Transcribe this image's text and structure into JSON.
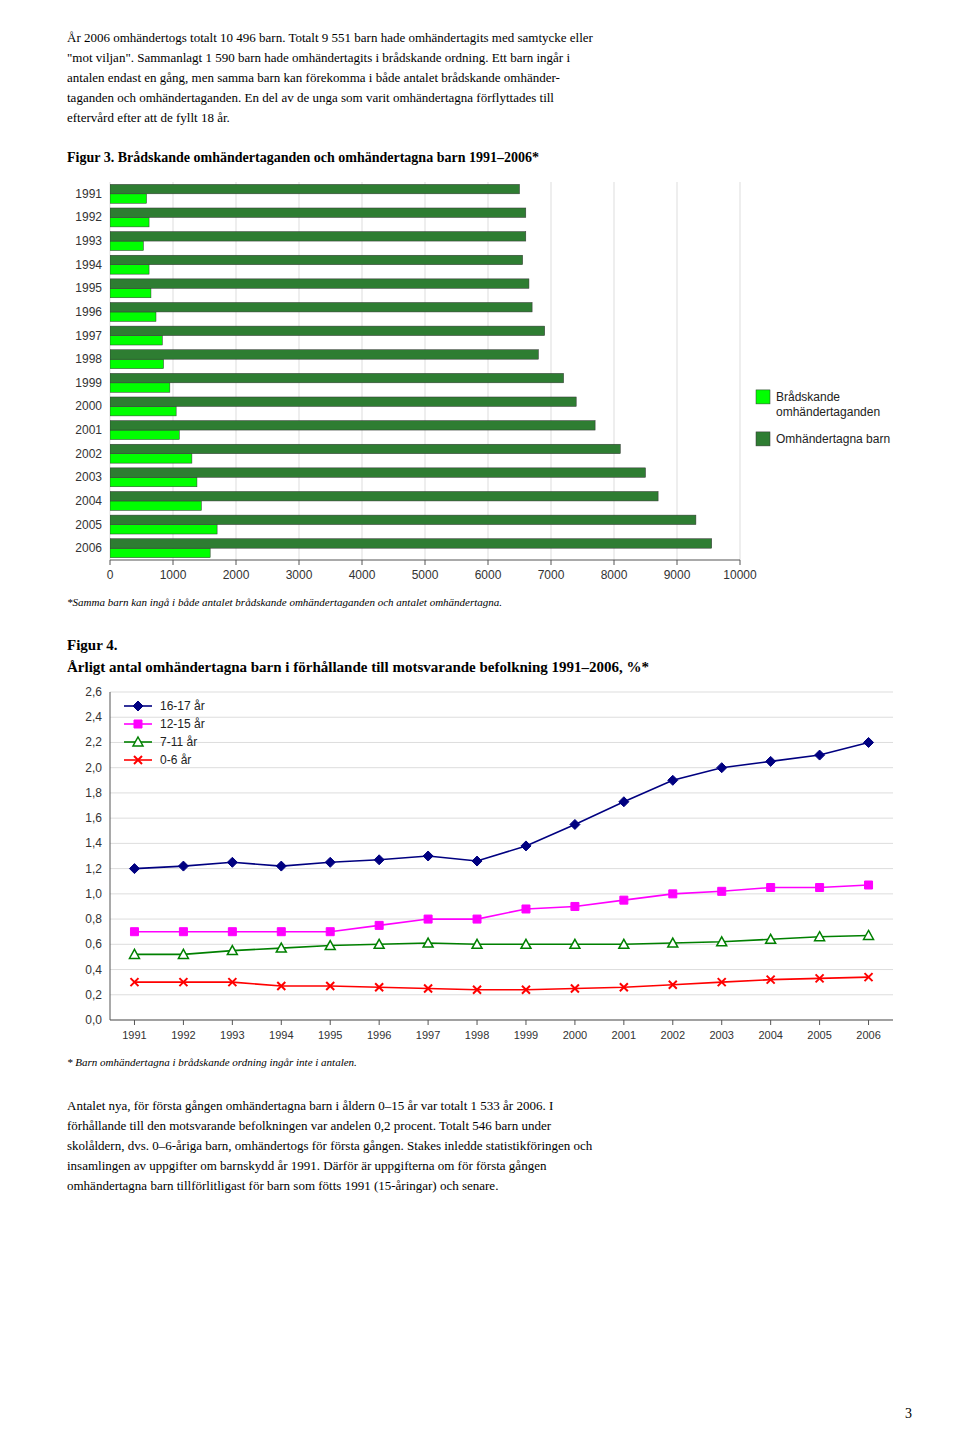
{
  "page_text_top": [
    "År 2006 omhändertogs totalt 10 496 barn. Totalt 9 551 barn hade omhändertagits med samtycke eller",
    "\"mot viljan\". Sammanlagt 1 590 barn hade omhändertagits i brådskande ordning. Ett barn ingår i",
    "antalen endast en gång, men samma barn kan förekomma i både antalet brådskande omhänder-",
    "taganden och omhändertaganden. En del av de unga som varit omhändertagna förflyttades till",
    "eftervård efter att de fyllt 18 år."
  ],
  "chart_data": [
    {
      "type": "bar",
      "orientation": "horizontal",
      "title": "Figur 3. Brådskande omhändertaganden och omhändertagna barn 1991–2006*",
      "categories": [
        2006,
        2005,
        2004,
        2003,
        2002,
        2001,
        2000,
        1999,
        1998,
        1997,
        1996,
        1995,
        1994,
        1993,
        1992,
        1991
      ],
      "series": [
        {
          "name": "Brådskande\nomhändertaganden",
          "color": "#00ff00",
          "values": [
            1590,
            1700,
            1450,
            1380,
            1300,
            1100,
            1050,
            950,
            850,
            830,
            730,
            650,
            620,
            530,
            620,
            580
          ]
        },
        {
          "name": "Omhändertagna barn",
          "color": "#2e7d32",
          "values": [
            9551,
            9300,
            8700,
            8500,
            8100,
            7700,
            7400,
            7200,
            6800,
            6900,
            6700,
            6650,
            6550,
            6600,
            6600,
            6500
          ]
        }
      ],
      "xlim": [
        0,
        10000
      ],
      "xticks": [
        0,
        1000,
        2000,
        3000,
        4000,
        5000,
        6000,
        7000,
        8000,
        9000,
        10000
      ],
      "grid": "x",
      "legend": "right",
      "footnote": "*Samma barn kan ingå i både antalet brådskande omhändertaganden och antalet omhändertagna."
    },
    {
      "type": "line",
      "title": "Figur 4.",
      "subtitle": "Årligt antal omhändertagna barn i förhållande till motsvarande befolkning 1991–2006, %*",
      "x": [
        1991,
        1992,
        1993,
        1994,
        1995,
        1996,
        1997,
        1998,
        1999,
        2000,
        2001,
        2002,
        2003,
        2004,
        2005,
        2006
      ],
      "series": [
        {
          "name": "16-17 år",
          "color": "#000080",
          "marker": "diamond",
          "values": [
            1.2,
            1.22,
            1.25,
            1.22,
            1.25,
            1.27,
            1.3,
            1.26,
            1.38,
            1.55,
            1.73,
            1.9,
            2.0,
            2.05,
            2.1,
            2.2
          ]
        },
        {
          "name": "12-15 år",
          "color": "#ff00ff",
          "marker": "square",
          "values": [
            0.7,
            0.7,
            0.7,
            0.7,
            0.7,
            0.75,
            0.8,
            0.8,
            0.88,
            0.9,
            0.95,
            1.0,
            1.02,
            1.05,
            1.05,
            1.07
          ]
        },
        {
          "name": "7-11 år",
          "color": "#008000",
          "marker": "triangle-open",
          "values": [
            0.52,
            0.52,
            0.55,
            0.57,
            0.59,
            0.6,
            0.61,
            0.6,
            0.6,
            0.6,
            0.6,
            0.61,
            0.62,
            0.64,
            0.66,
            0.67
          ]
        },
        {
          "name": "0-6 år",
          "color": "#ff0000",
          "marker": "x",
          "values": [
            0.3,
            0.3,
            0.3,
            0.27,
            0.27,
            0.26,
            0.25,
            0.24,
            0.24,
            0.25,
            0.26,
            0.28,
            0.3,
            0.32,
            0.33,
            0.34
          ]
        }
      ],
      "xlim": [
        1990.5,
        2006.5
      ],
      "xticks": [
        1991,
        1992,
        1993,
        1994,
        1995,
        1996,
        1997,
        1998,
        1999,
        2000,
        2001,
        2002,
        2003,
        2004,
        2005,
        2006
      ],
      "ylim": [
        0.0,
        2.6
      ],
      "yticks": [
        {
          "value": 0.0,
          "label": "0,0"
        },
        {
          "value": 0.2,
          "label": "0,2"
        },
        {
          "value": 0.4,
          "label": "0,4"
        },
        {
          "value": 0.6,
          "label": "0,6"
        },
        {
          "value": 0.8,
          "label": "0,8"
        },
        {
          "value": 1.0,
          "label": "1,0"
        },
        {
          "value": 1.2,
          "label": "1,2"
        },
        {
          "value": 1.4,
          "label": "1,4"
        },
        {
          "value": 1.6,
          "label": "1,6"
        },
        {
          "value": 1.8,
          "label": "1,8"
        },
        {
          "value": 2.0,
          "label": "2,0"
        },
        {
          "value": 2.2,
          "label": "2,2"
        },
        {
          "value": 2.4,
          "label": "2,4"
        },
        {
          "value": 2.6,
          "label": "2,6"
        }
      ],
      "grid": "y",
      "legend": "upper left",
      "footnote": "* Barn omhändertagna i brådskande ordning ingår inte i antalen."
    }
  ],
  "page_text_bottom": [
    "Antalet nya, för första gången omhändertagna barn i åldern 0–15 år var totalt 1 533 år 2006. I",
    "förhållande till den motsvarande befolkningen var andelen 0,2 procent. Totalt 546 barn under",
    "skolåldern, dvs. 0–6-åriga barn, omhändertogs för första gången. Stakes inledde statistikföringen och",
    "insamlingen av uppgifter om barnskydd år 1991. Därför är uppgifterna om för första gången",
    "omhändertagna barn tillförlitligast för barn som fötts 1991 (15-åringar) och senare."
  ],
  "page_number": "3"
}
